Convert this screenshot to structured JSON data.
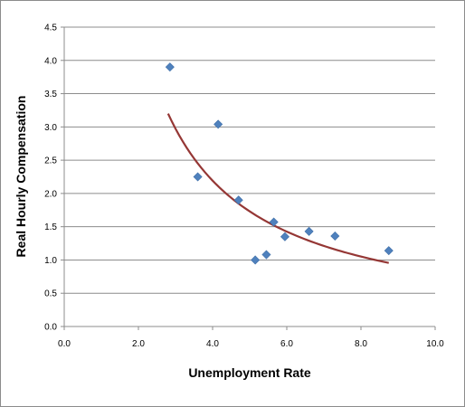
{
  "chart_data": {
    "type": "scatter",
    "title": "",
    "xlabel": "Unemployment Rate",
    "ylabel": "Real Hourly Compensation",
    "xlim": [
      0,
      10
    ],
    "ylim": [
      0,
      4.5
    ],
    "x_ticks": [
      "0.0",
      "2.0",
      "4.0",
      "6.0",
      "8.0",
      "10.0"
    ],
    "y_ticks": [
      "0.0",
      "0.5",
      "1.0",
      "1.5",
      "2.0",
      "2.5",
      "3.0",
      "3.5",
      "4.0",
      "4.5"
    ],
    "grid": "horizontal",
    "legend": "none",
    "series": [
      {
        "marker": "diamond",
        "color": "#4f81bd",
        "points": [
          {
            "x": 2.85,
            "y": 3.9
          },
          {
            "x": 3.6,
            "y": 2.25
          },
          {
            "x": 4.15,
            "y": 3.04
          },
          {
            "x": 4.7,
            "y": 1.9
          },
          {
            "x": 5.15,
            "y": 1.0
          },
          {
            "x": 5.45,
            "y": 1.08
          },
          {
            "x": 5.65,
            "y": 1.57
          },
          {
            "x": 5.95,
            "y": 1.35
          },
          {
            "x": 6.6,
            "y": 1.43
          },
          {
            "x": 7.3,
            "y": 1.36
          },
          {
            "x": 8.75,
            "y": 1.14
          }
        ]
      }
    ],
    "trendline": {
      "type": "power",
      "color": "#953735",
      "x_range": [
        2.8,
        8.75
      ],
      "a": 9.53,
      "b": -1.06
    }
  }
}
